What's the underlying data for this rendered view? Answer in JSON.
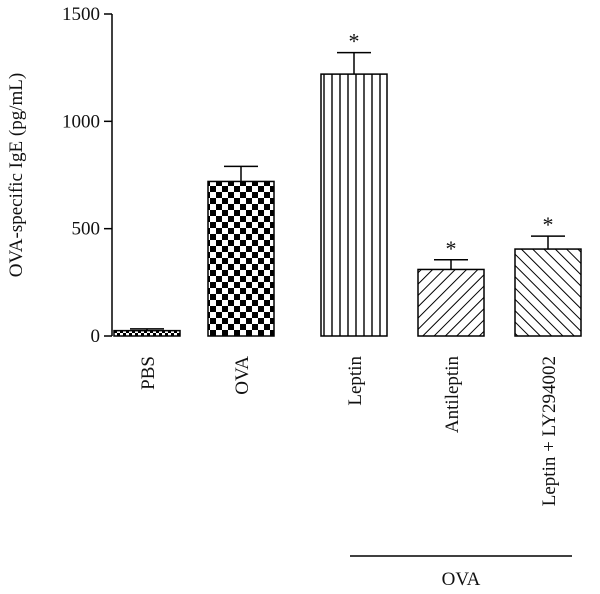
{
  "chart_data": {
    "type": "bar",
    "title": "",
    "xlabel": "",
    "ylabel": "OVA-specific IgE (pg/mL)",
    "ylim": [
      0,
      1500
    ],
    "yticks": [
      0,
      500,
      1000,
      1500
    ],
    "categories": [
      "PBS",
      "OVA",
      "Leptin",
      "Antileptin",
      "Leptin + LY294002"
    ],
    "values": [
      25,
      720,
      1220,
      310,
      405
    ],
    "errors": [
      8,
      70,
      100,
      45,
      60
    ],
    "significance": [
      "",
      "",
      "*",
      "*",
      "*"
    ],
    "patterns": [
      "dense-checker",
      "checker",
      "vertical-lines",
      "diagonal-lines",
      "diagonal-lines-back"
    ],
    "group_label": "OVA",
    "group_span": [
      "Leptin",
      "Leptin + LY294002"
    ],
    "grid": false,
    "legend": "none"
  }
}
